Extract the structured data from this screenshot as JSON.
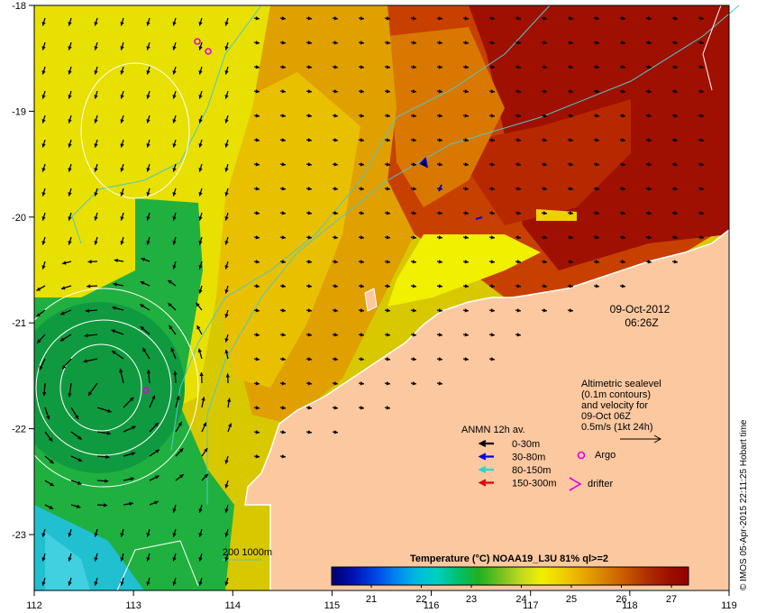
{
  "map": {
    "date_label": "09-Oct-2012",
    "time_label": "06:26Z",
    "x_ticks": [
      "112",
      "113",
      "114",
      "115",
      "116",
      "117",
      "118",
      "119"
    ],
    "y_ticks": [
      "-18",
      "-19",
      "-20",
      "-21",
      "-22",
      "-23"
    ],
    "credit": "© IMOS 05-Apr-2015 22:11:25 Hobart time",
    "altimetry_note": [
      "Altimetric sealevel",
      "(0.1m contours)",
      "and velocity for",
      "09-Oct 06Z",
      "0.5m/s (1kt 24h)"
    ],
    "bathymetry_label": "200  1000m",
    "bathymetry_color": "#4fc8c8"
  },
  "legend": {
    "title": "ANMN 12h av.",
    "items": [
      {
        "label": "0-30m",
        "color": "#000000"
      },
      {
        "label": "30-80m",
        "color": "#0000e0"
      },
      {
        "label": "80-150m",
        "color": "#20d8d8"
      },
      {
        "label": "150-300m",
        "color": "#e00000"
      }
    ],
    "argo_label": "Argo",
    "argo_color": "#e000e0",
    "drifter_label": "drifter",
    "drifter_color": "#e000e0"
  },
  "colorbar": {
    "title": "Temperature (°C) NOAA19_L3U 81% ql>=2",
    "tick_labels": [
      "21",
      "22",
      "23",
      "24",
      "25",
      "26",
      "27"
    ],
    "colors": [
      "#000070",
      "#0010b0",
      "#0040e0",
      "#0080f0",
      "#00b8e0",
      "#00d0c0",
      "#00c070",
      "#20b020",
      "#70c020",
      "#c0d820",
      "#f0f000",
      "#f0d000",
      "#e8a800",
      "#d88000",
      "#c85800",
      "#b03000",
      "#a01000",
      "#900000"
    ]
  },
  "colors": {
    "land": "#fbc8a0",
    "sst_warm": "#a01000",
    "sst_mid": "#e0a000",
    "sst_yellow": "#e8e000",
    "sst_green": "#20b040",
    "sst_cyan": "#20c0d0"
  }
}
